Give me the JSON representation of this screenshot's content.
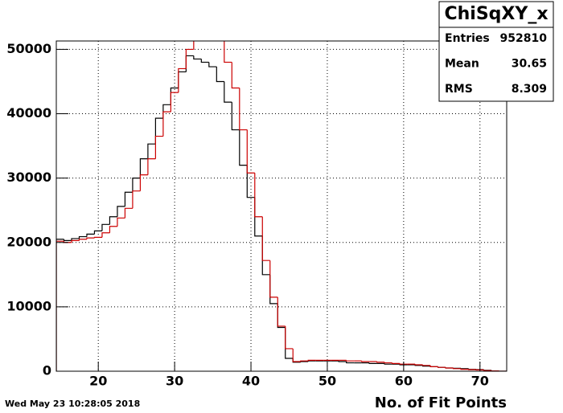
{
  "chart_data": {
    "type": "histogram",
    "title": "ChiSqXY_x",
    "x_label": "No. of Fit Points",
    "timestamp": "Wed May 23 10:28:05 2018",
    "bins": [
      14.5,
      15.5,
      16.5,
      17.5,
      18.5,
      19.5,
      20.5,
      21.5,
      22.5,
      23.5,
      24.5,
      25.5,
      26.5,
      27.5,
      28.5,
      29.5,
      30.5,
      31.5,
      32.5,
      33.5,
      34.5,
      35.5,
      36.5,
      37.5,
      38.5,
      39.5,
      40.5,
      41.5,
      42.5,
      43.5,
      44.5,
      45.5,
      46.5,
      47.5,
      48.5,
      49.5,
      50.5,
      51.5,
      52.5,
      53.5,
      54.5,
      55.5,
      56.5,
      57.5,
      58.5,
      59.5,
      60.5,
      61.5,
      62.5,
      63.5,
      64.5,
      65.5,
      66.5,
      67.5,
      68.5,
      69.5,
      70.5,
      71.5,
      72.5,
      73.5
    ],
    "series": [
      {
        "color": "#000000",
        "values": [
          20500,
          20300,
          20600,
          20900,
          21300,
          21800,
          22800,
          24000,
          25600,
          27800,
          30000,
          33000,
          35300,
          39300,
          41400,
          44000,
          46500,
          49000,
          48500,
          48000,
          47300,
          45000,
          41800,
          37500,
          32000,
          27000,
          21000,
          15000,
          10500,
          6800,
          2000,
          1400,
          1500,
          1600,
          1600,
          1600,
          1600,
          1500,
          1300,
          1300,
          1300,
          1200,
          1200,
          1100,
          1100,
          1000,
          1000,
          900,
          800,
          700,
          600,
          500,
          450,
          400,
          300,
          250,
          150,
          50,
          0
        ]
      },
      {
        "color": "#cc0000",
        "values": [
          20200,
          20000,
          20300,
          20500,
          20700,
          20800,
          21500,
          22500,
          23800,
          25300,
          28000,
          30500,
          33000,
          36500,
          40300,
          43300,
          47000,
          50000,
          52000,
          53000,
          52500,
          51800,
          48000,
          44000,
          37500,
          30800,
          24000,
          17200,
          11500,
          7000,
          3500,
          1500,
          1600,
          1700,
          1700,
          1700,
          1700,
          1700,
          1600,
          1600,
          1500,
          1500,
          1400,
          1300,
          1200,
          1100,
          1100,
          1000,
          900,
          700,
          600,
          500,
          400,
          300,
          250,
          200,
          100,
          50,
          0
        ]
      }
    ],
    "xlim": [
      14.5,
      73.5
    ],
    "xticks": [
      20,
      30,
      40,
      50,
      60,
      70
    ],
    "ylim": [
      0,
      51300
    ],
    "yticks": [
      0,
      10000,
      20000,
      30000,
      40000,
      50000
    ],
    "grid": true,
    "stats": [
      {
        "label": "Entries",
        "value": 952810
      },
      {
        "label": "Mean",
        "value": 30.65
      },
      {
        "label": "RMS",
        "value": 8.309
      }
    ]
  }
}
